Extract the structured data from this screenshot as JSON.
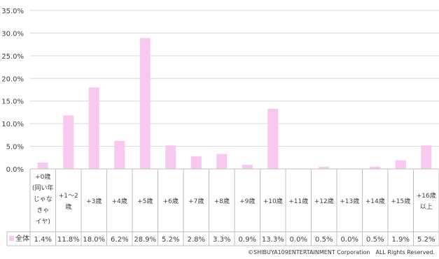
{
  "chart_data": {
    "type": "bar",
    "categories": [
      [
        "+0歳",
        "(同い年",
        "じゃな",
        "きゃ",
        "イヤ)"
      ],
      [
        "+1～2",
        "歳"
      ],
      [
        "+3歳"
      ],
      [
        "+4歳"
      ],
      [
        "+5歳"
      ],
      [
        "+6歳"
      ],
      [
        "+7歳"
      ],
      [
        "+8歳"
      ],
      [
        "+9歳"
      ],
      [
        "+10歳"
      ],
      [
        "+11歳"
      ],
      [
        "+12歳"
      ],
      [
        "+13歳"
      ],
      [
        "+14歳"
      ],
      [
        "+15歳"
      ],
      [
        "+16歳",
        "以上"
      ]
    ],
    "series": [
      {
        "name": "全体",
        "color": "#f9c8f0",
        "values": [
          1.4,
          11.8,
          18.0,
          6.2,
          28.9,
          5.2,
          2.8,
          3.3,
          0.9,
          13.3,
          0.0,
          0.5,
          0.0,
          0.5,
          1.9,
          5.2
        ],
        "labels": [
          "1.4%",
          "11.8%",
          "18.0%",
          "6.2%",
          "28.9%",
          "5.2%",
          "2.8%",
          "3.3%",
          "0.9%",
          "13.3%",
          "0.0%",
          "0.5%",
          "0.0%",
          "0.5%",
          "1.9%",
          "5.2%"
        ]
      }
    ],
    "yticks": [
      "0.0%",
      "5.0%",
      "10.0%",
      "15.0%",
      "20.0%",
      "25.0%",
      "30.0%",
      "35.0%"
    ],
    "ylim": [
      0,
      35
    ],
    "grid": true,
    "legend": "data-table-left"
  },
  "copyright": "©SHIBUYA109ENTERTAINMENT Corporation　ALL Rights Reserved."
}
